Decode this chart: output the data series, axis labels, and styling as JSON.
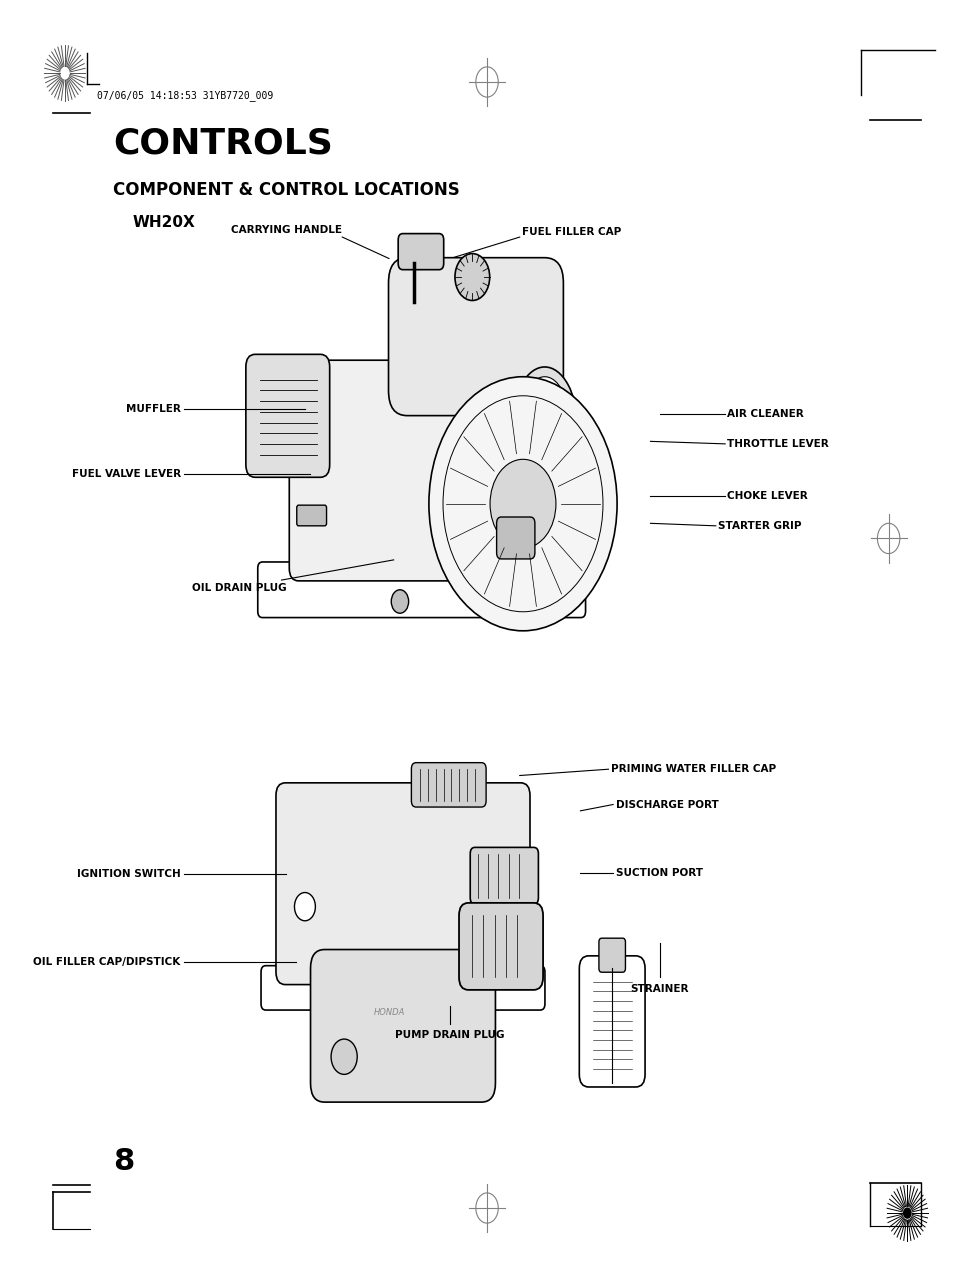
{
  "bg_color": "#ffffff",
  "page_title": "CONTROLS",
  "section_title": "COMPONENT & CONTROL LOCATIONS",
  "model": "WH20X",
  "header_text": "07/06/05 14:18:53 31YB7720_009",
  "page_number": "8"
}
